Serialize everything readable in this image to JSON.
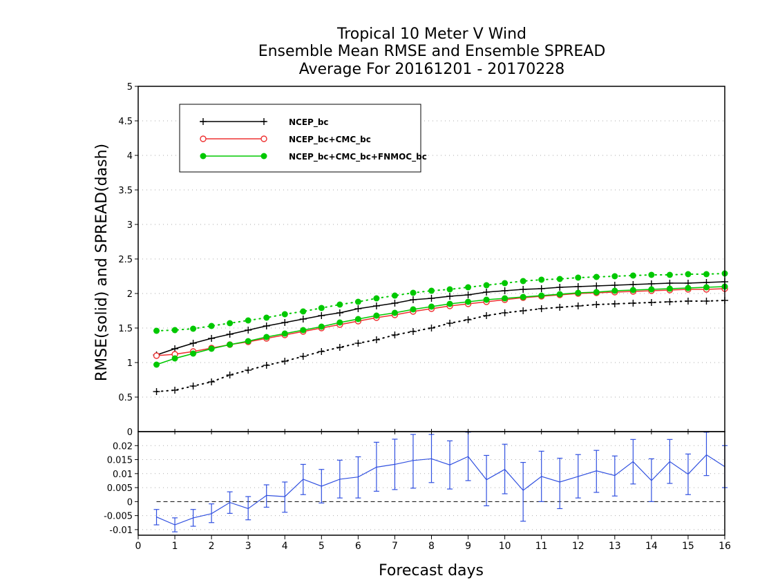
{
  "chart_data": {
    "type": "line",
    "title_lines": [
      "Tropical 10 Meter V Wind",
      "Ensemble Mean RMSE and Ensemble SPREAD",
      "Average For 20161201 - 20170228"
    ],
    "xlabel": "Forecast days",
    "ylabel": "RMSE(solid)  and  SPREAD(dash)",
    "xlim": [
      0,
      16
    ],
    "x_ticks": [
      "0",
      "1",
      "2",
      "3",
      "4",
      "5",
      "6",
      "7",
      "8",
      "9",
      "10",
      "11",
      "12",
      "13",
      "14",
      "15",
      "16"
    ],
    "top_panel": {
      "ylim": [
        0,
        5
      ],
      "y_ticks": [
        "0.5",
        "1",
        "1.5",
        "2",
        "2.5",
        "3",
        "3.5",
        "4",
        "4.5",
        "5"
      ],
      "legend_position": "top-left",
      "series": [
        {
          "name": "NCEP_bc",
          "kind": "rmse",
          "color": "#000000",
          "marker": "plus",
          "values": [
            1.11,
            1.2,
            1.28,
            1.35,
            1.41,
            1.47,
            1.53,
            1.58,
            1.63,
            1.68,
            1.72,
            1.78,
            1.82,
            1.86,
            1.91,
            1.93,
            1.96,
            1.98,
            2.02,
            2.04,
            2.06,
            2.07,
            2.09,
            2.1,
            2.11,
            2.12,
            2.13,
            2.14,
            2.15,
            2.15,
            2.16,
            2.17
          ]
        },
        {
          "name": "NCEP_bc+CMC_bc",
          "kind": "rmse",
          "color": "#ee3030",
          "marker": "open-circle",
          "values": [
            1.1,
            1.12,
            1.16,
            1.21,
            1.26,
            1.3,
            1.35,
            1.4,
            1.45,
            1.5,
            1.55,
            1.6,
            1.65,
            1.69,
            1.74,
            1.78,
            1.82,
            1.85,
            1.88,
            1.91,
            1.94,
            1.96,
            1.98,
            2.0,
            2.01,
            2.02,
            2.03,
            2.04,
            2.05,
            2.06,
            2.06,
            2.07
          ]
        },
        {
          "name": "NCEP_bc+CMC_bc+FNMOC_bc",
          "kind": "rmse",
          "color": "#00c800",
          "marker": "filled-circle",
          "values": [
            0.97,
            1.06,
            1.13,
            1.2,
            1.26,
            1.31,
            1.37,
            1.42,
            1.47,
            1.52,
            1.58,
            1.63,
            1.68,
            1.72,
            1.77,
            1.81,
            1.85,
            1.88,
            1.91,
            1.93,
            1.95,
            1.97,
            1.99,
            2.01,
            2.02,
            2.04,
            2.05,
            2.06,
            2.07,
            2.08,
            2.09,
            2.1
          ]
        },
        {
          "kind": "spread",
          "color": "#000000",
          "marker": "plus",
          "values": [
            0.58,
            0.6,
            0.66,
            0.72,
            0.82,
            0.89,
            0.96,
            1.02,
            1.09,
            1.16,
            1.22,
            1.28,
            1.33,
            1.4,
            1.45,
            1.5,
            1.57,
            1.62,
            1.68,
            1.72,
            1.75,
            1.78,
            1.8,
            1.82,
            1.84,
            1.85,
            1.86,
            1.87,
            1.88,
            1.89,
            1.89,
            1.9
          ]
        },
        {
          "kind": "spread",
          "color": "#00c800",
          "marker": "filled-circle",
          "values": [
            1.46,
            1.47,
            1.49,
            1.53,
            1.57,
            1.61,
            1.65,
            1.7,
            1.74,
            1.79,
            1.84,
            1.88,
            1.93,
            1.97,
            2.01,
            2.04,
            2.06,
            2.09,
            2.12,
            2.15,
            2.18,
            2.2,
            2.21,
            2.23,
            2.24,
            2.25,
            2.26,
            2.27,
            2.27,
            2.28,
            2.28,
            2.29
          ]
        }
      ]
    },
    "bottom_panel": {
      "ylim": [
        -0.012,
        0.025
      ],
      "y_ticks": [
        "-0.01",
        "-0.005",
        "0",
        "0.005",
        "0.01",
        "0.015",
        "0.02",
        "0"
      ],
      "series": [
        {
          "kind": "difference",
          "color": "#3050e0",
          "marker": "error-bar",
          "values": [
            -0.0055,
            -0.0083,
            -0.0058,
            -0.0043,
            -0.0003,
            -0.0025,
            0.0022,
            0.0018,
            0.008,
            0.0055,
            0.008,
            0.0088,
            0.0123,
            0.0133,
            0.0147,
            0.0153,
            0.0131,
            0.0161,
            0.0078,
            0.0115,
            0.004,
            0.009,
            0.007,
            0.009,
            0.011,
            0.0093,
            0.0143,
            0.0075,
            0.0143,
            0.0098,
            0.0167,
            0.0125
          ],
          "error_low": [
            -0.0083,
            -0.0108,
            -0.0088,
            -0.0075,
            -0.0042,
            -0.0065,
            -0.002,
            -0.0038,
            0.0025,
            -0.0005,
            0.0013,
            0.0013,
            0.0037,
            0.0043,
            0.0048,
            0.0068,
            0.0045,
            0.0075,
            -0.0015,
            0.0028,
            -0.007,
            0.0,
            -0.0025,
            0.0013,
            0.0033,
            0.002,
            0.0063,
            0.0,
            0.0065,
            0.0025,
            0.0093,
            0.005
          ],
          "error_high": [
            -0.0028,
            -0.0058,
            -0.0028,
            -0.0008,
            0.0035,
            0.0018,
            0.006,
            0.007,
            0.0133,
            0.0115,
            0.0148,
            0.016,
            0.0212,
            0.0223,
            0.024,
            0.024,
            0.0217,
            0.0248,
            0.0165,
            0.0205,
            0.014,
            0.018,
            0.0155,
            0.0168,
            0.0183,
            0.0163,
            0.0222,
            0.0153,
            0.0222,
            0.017,
            0.0248,
            0.02
          ]
        }
      ]
    }
  }
}
